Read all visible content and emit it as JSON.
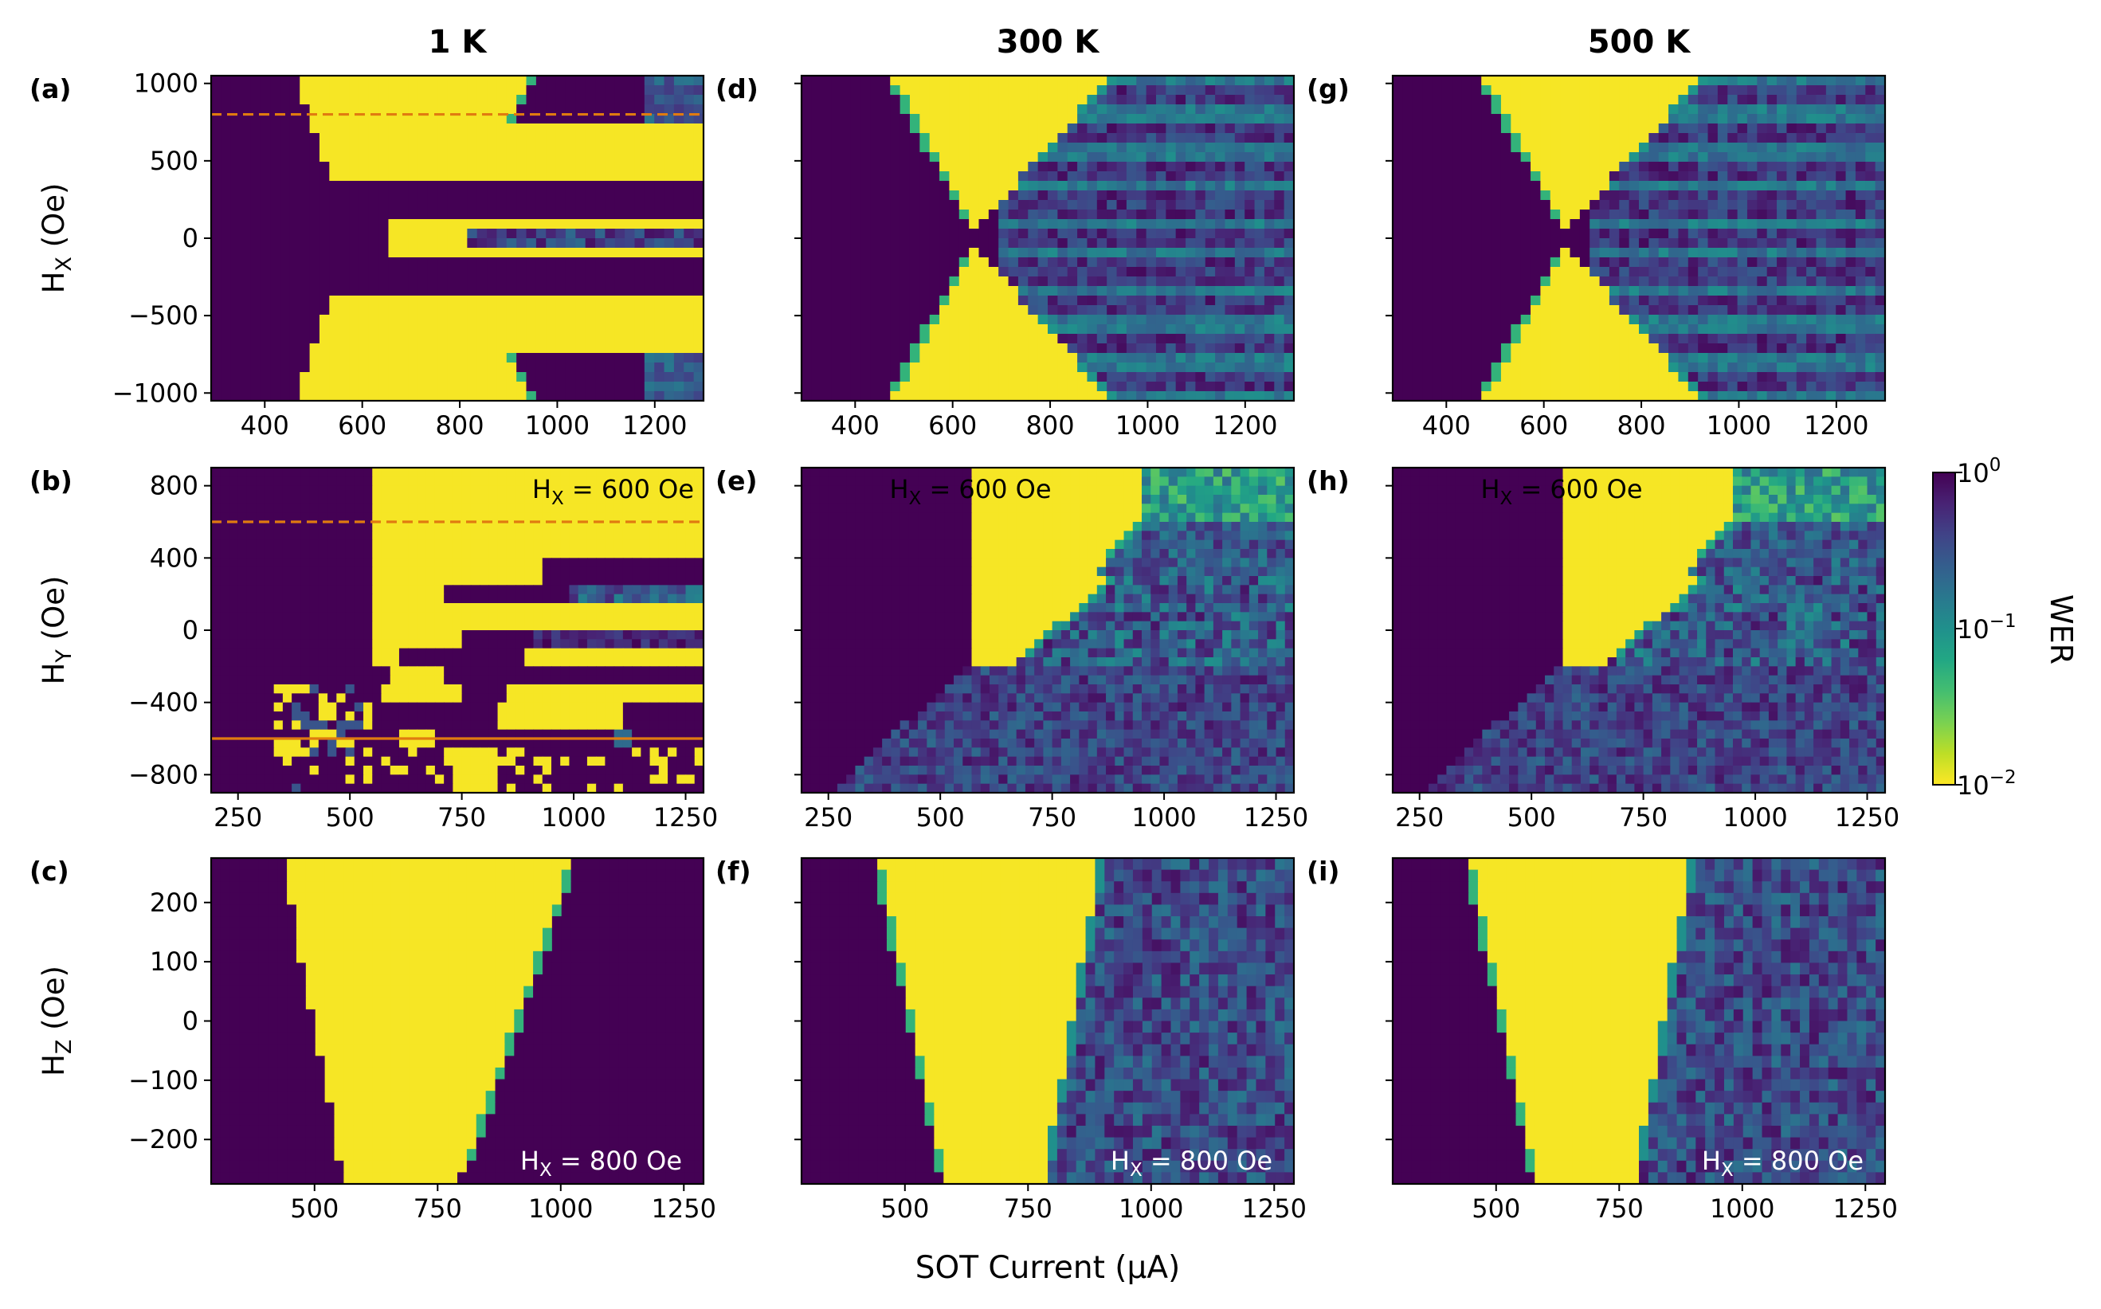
{
  "chart_data": {
    "type": "heatmap",
    "figure_xlabel": "SOT Current (μA)",
    "columns": [
      "1 K",
      "300 K",
      "500 K"
    ],
    "rows": [
      {
        "ylabel": "H_X (Oe)",
        "ylabel_main": "H",
        "ylabel_sub": "X",
        "ylabel_unit": " (Oe)",
        "xlim": [
          290,
          1300
        ],
        "ylim": [
          -1050,
          1050
        ],
        "xticks": [
          400,
          600,
          800,
          1000,
          1200
        ],
        "xtick_labels": [
          "400",
          "600",
          "800",
          "1000",
          "1200"
        ],
        "yticks": [
          -1000,
          -500,
          0,
          500,
          1000
        ],
        "ytick_labels": [
          "−1000",
          "−500",
          "0",
          "500",
          "1000"
        ]
      },
      {
        "ylabel": "H_Y (Oe)",
        "ylabel_main": "H",
        "ylabel_sub": "Y",
        "ylabel_unit": " (Oe)",
        "xlim": [
          190,
          1290
        ],
        "ylim": [
          -900,
          900
        ],
        "xticks": [
          250,
          500,
          750,
          1000,
          1250
        ],
        "xtick_labels": [
          "250",
          "500",
          "750",
          "1000",
          "1250"
        ],
        "yticks": [
          -800,
          -400,
          0,
          400,
          800
        ],
        "ytick_labels": [
          "−800",
          "−400",
          "0",
          "400",
          "800"
        ]
      },
      {
        "ylabel": "H_Z (Oe)",
        "ylabel_main": "H",
        "ylabel_sub": "Z",
        "ylabel_unit": " (Oe)",
        "xlim": [
          290,
          1290
        ],
        "ylim": [
          -275,
          275
        ],
        "xticks": [
          500,
          750,
          1000,
          1250
        ],
        "xtick_labels": [
          "500",
          "750",
          "1000",
          "1250"
        ],
        "yticks": [
          -200,
          -100,
          0,
          100,
          200
        ],
        "ytick_labels": [
          "−200",
          "−100",
          "0",
          "100",
          "200"
        ]
      }
    ],
    "panels": [
      {
        "label": "(a)",
        "row": 0,
        "col": 0,
        "temperature": "1 K",
        "annotation": null,
        "dashed_line_y": 800
      },
      {
        "label": "(b)",
        "row": 1,
        "col": 0,
        "temperature": "1 K",
        "annotation": {
          "main": "H",
          "sub": "X",
          "tail": " = 600 Oe"
        },
        "dashed_line_y": 600,
        "solid_line_y": -600
      },
      {
        "label": "(c)",
        "row": 2,
        "col": 0,
        "temperature": "1 K",
        "annotation": {
          "main": "H",
          "sub": "X",
          "tail": " = 800 Oe"
        }
      },
      {
        "label": "(d)",
        "row": 0,
        "col": 1,
        "temperature": "300 K",
        "annotation": null
      },
      {
        "label": "(e)",
        "row": 1,
        "col": 1,
        "temperature": "300 K",
        "annotation": {
          "main": "H",
          "sub": "X",
          "tail": " = 600 Oe"
        }
      },
      {
        "label": "(f)",
        "row": 2,
        "col": 1,
        "temperature": "300 K",
        "annotation": {
          "main": "H",
          "sub": "X",
          "tail": " = 800 Oe"
        }
      },
      {
        "label": "(g)",
        "row": 0,
        "col": 2,
        "temperature": "500 K",
        "annotation": null
      },
      {
        "label": "(h)",
        "row": 1,
        "col": 2,
        "temperature": "500 K",
        "annotation": {
          "main": "H",
          "sub": "X",
          "tail": " = 600 Oe"
        }
      },
      {
        "label": "(i)",
        "row": 2,
        "col": 2,
        "temperature": "500 K",
        "annotation": {
          "main": "H",
          "sub": "X",
          "tail": " = 800 Oe"
        }
      }
    ],
    "colorbar": {
      "label": "WER",
      "scale": "log",
      "range": [
        0.01,
        1
      ],
      "colormap": "viridis_r",
      "tick_labels": [
        {
          "base": "10",
          "exp": "0",
          "value": 1
        },
        {
          "base": "10",
          "exp": "−1",
          "value": 0.1
        },
        {
          "base": "10",
          "exp": "−2",
          "value": 0.01
        }
      ]
    },
    "colors": {
      "low_wer": "#fde725",
      "high_wer": "#440154",
      "dashed_line": "#e07b10",
      "solid_line": "#e07b10"
    }
  }
}
